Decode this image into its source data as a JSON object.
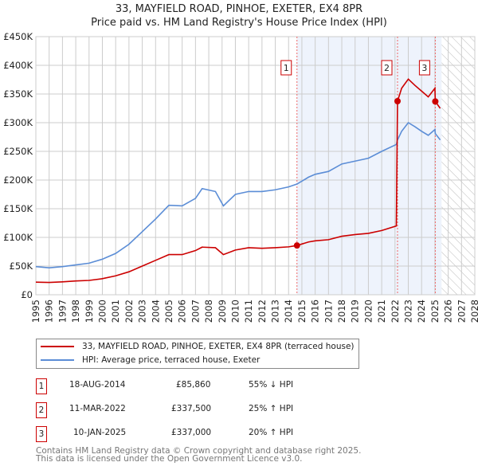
{
  "chart_data": {
    "type": "line",
    "title": "33, MAYFIELD ROAD, PINHOE, EXETER, EX4 8PR",
    "subtitle": "Price paid vs. HM Land Registry's House Price Index (HPI)",
    "xlim": [
      1995,
      2028
    ],
    "ylim": [
      0,
      450000
    ],
    "yticks": [
      {
        "v": 0,
        "label": "£0"
      },
      {
        "v": 50000,
        "label": "£50K"
      },
      {
        "v": 100000,
        "label": "£100K"
      },
      {
        "v": 150000,
        "label": "£150K"
      },
      {
        "v": 200000,
        "label": "£200K"
      },
      {
        "v": 250000,
        "label": "£250K"
      },
      {
        "v": 300000,
        "label": "£300K"
      },
      {
        "v": 350000,
        "label": "£350K"
      },
      {
        "v": 400000,
        "label": "£400K"
      },
      {
        "v": 450000,
        "label": "£450K"
      }
    ],
    "xticks": [
      "1995",
      "1996",
      "1997",
      "1998",
      "1999",
      "2000",
      "2001",
      "2002",
      "2003",
      "2004",
      "2005",
      "2006",
      "2007",
      "2008",
      "2009",
      "2010",
      "2011",
      "2012",
      "2013",
      "2014",
      "2015",
      "2016",
      "2017",
      "2018",
      "2019",
      "2020",
      "2021",
      "2022",
      "2023",
      "2024",
      "2025",
      "2026",
      "2027",
      "2028"
    ],
    "shaded_range": [
      2014.63,
      2025.5
    ],
    "forecast_hatch_from": 2025.5,
    "series": [
      {
        "name": "33, MAYFIELD ROAD, PINHOE, EXETER, EX4 8PR (terraced house)",
        "color": "#cc0000",
        "x": [
          1995,
          1996,
          1997,
          1998,
          1999,
          2000,
          2001,
          2002,
          2003,
          2004,
          2005,
          2006,
          2007,
          2007.5,
          2008.5,
          2009.1,
          2010,
          2011,
          2012,
          2013,
          2014,
          2014.63,
          2015.5,
          2016,
          2017,
          2018,
          2019,
          2020,
          2021,
          2022.1,
          2022.19,
          2022.5,
          2023,
          2023.5,
          2024,
          2024.5,
          2025,
          2025.03,
          2025.4
        ],
        "y": [
          22000,
          21500,
          22500,
          24000,
          25000,
          28000,
          33000,
          40000,
          50000,
          60000,
          70000,
          70000,
          77000,
          83000,
          82000,
          70000,
          78000,
          82000,
          81000,
          82000,
          83500,
          85860,
          92000,
          94000,
          96000,
          102000,
          105000,
          107000,
          112000,
          120000,
          337500,
          360000,
          376000,
          365000,
          355000,
          345000,
          360000,
          337000,
          325000
        ]
      },
      {
        "name": "HPI: Average price, terraced house, Exeter",
        "color": "#5b8dd6",
        "x": [
          1995,
          1996,
          1997,
          1998,
          1999,
          2000,
          2001,
          2002,
          2003,
          2004,
          2005,
          2006,
          2007,
          2007.5,
          2008.5,
          2009.1,
          2010,
          2011,
          2012,
          2013,
          2014,
          2014.63,
          2015.5,
          2016,
          2017,
          2018,
          2019,
          2020,
          2021,
          2022.1,
          2022.19,
          2022.5,
          2023,
          2023.5,
          2024,
          2024.5,
          2025,
          2025.03,
          2025.4
        ],
        "y": [
          49000,
          47000,
          49000,
          52000,
          55000,
          62000,
          72000,
          88000,
          110000,
          132000,
          156000,
          155000,
          168000,
          185000,
          180000,
          155000,
          175000,
          180000,
          180000,
          183000,
          188000,
          193000,
          205000,
          210000,
          215000,
          228000,
          233000,
          238000,
          250000,
          262000,
          270000,
          285000,
          300000,
          293000,
          285000,
          278000,
          288000,
          281000,
          270000
        ]
      }
    ],
    "sales": [
      {
        "n": "1",
        "x": 2014.63,
        "y": 85860
      },
      {
        "n": "2",
        "x": 2022.19,
        "y": 337500
      },
      {
        "n": "3",
        "x": 2025.03,
        "y": 337000
      }
    ]
  },
  "legend": {
    "property": "33, MAYFIELD ROAD, PINHOE, EXETER, EX4 8PR (terraced house)",
    "hpi": "HPI: Average price, terraced house, Exeter"
  },
  "table": [
    {
      "n": "1",
      "date": "18-AUG-2014",
      "price": "£85,860",
      "hpi": "55% ↓ HPI"
    },
    {
      "n": "2",
      "date": "11-MAR-2022",
      "price": "£337,500",
      "hpi": "25% ↑ HPI"
    },
    {
      "n": "3",
      "date": "10-JAN-2025",
      "price": "£337,000",
      "hpi": "20% ↑ HPI"
    }
  ],
  "footer": [
    "Contains HM Land Registry data © Crown copyright and database right 2025.",
    "This data is licensed under the Open Government Licence v3.0."
  ]
}
